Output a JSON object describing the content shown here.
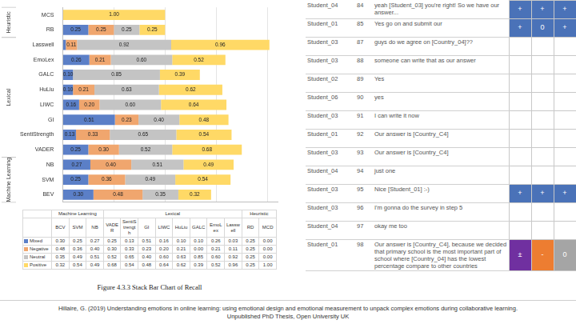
{
  "chart_data": {
    "type": "bar",
    "orientation": "horizontal",
    "stacked": true,
    "data_labels": true,
    "grid": true,
    "tick_labels": "y",
    "categories": [
      "MCS",
      "RB",
      "Lasswell",
      "EmoLex",
      "GALC",
      "HuLiu",
      "LIWC",
      "GI",
      "SentiStrength",
      "VADER",
      "NB",
      "SVM",
      "BEV"
    ],
    "groups": [
      {
        "label": "Heuristic",
        "categories": [
          "MCS",
          "RB"
        ]
      },
      {
        "label": "Lexical",
        "categories": [
          "Lasswell",
          "EmoLex",
          "GALC",
          "HuLiu",
          "LIWC",
          "GI",
          "SentiStrength",
          "VADER"
        ]
      },
      {
        "label": "Machine Learning",
        "categories": [
          "NB",
          "SVM",
          "BEV"
        ]
      }
    ],
    "xlim": [
      0,
      2.1
    ],
    "xticks": [
      0,
      0.5,
      1,
      1.5,
      2
    ],
    "series": [
      {
        "name": "Mixed",
        "color": "#5b7fc7",
        "values": [
          0,
          0.25,
          0.03,
          0.26,
          0.1,
          0.1,
          0.16,
          0.51,
          0.13,
          0.25,
          0.27,
          0.25,
          0.3
        ],
        "value_labels": [
          null,
          "0.25",
          null,
          "0.26",
          "0.10",
          "0.10",
          "0.16",
          "0.51",
          "0.13",
          "0.25",
          "0.27",
          "0.25",
          "0.30"
        ]
      },
      {
        "name": "Negative",
        "color": "#f0a66e",
        "values": [
          0,
          0.25,
          0.11,
          0.21,
          0,
          0.21,
          0.2,
          0.23,
          0.33,
          0.3,
          0.4,
          0.36,
          0.48
        ],
        "value_labels": [
          null,
          "0.25",
          "0.11",
          "0.21",
          null,
          "0.21",
          "0.20",
          "0.23",
          "0.33",
          "0.30",
          "0.40",
          "0.36",
          "0.48"
        ]
      },
      {
        "name": "Neutral",
        "color": "#c4c4c4",
        "values": [
          0,
          0.25,
          0.92,
          0.6,
          0.85,
          0.63,
          0.6,
          0.4,
          0.65,
          0.52,
          0.51,
          0.49,
          0.35
        ],
        "value_labels": [
          null,
          "0.25",
          "0.92",
          "0.60",
          "0.85",
          "0.63",
          "0.60",
          "0.40",
          "0.65",
          "0.52",
          "0.51",
          "0.49",
          "0.35"
        ]
      },
      {
        "name": "Positive",
        "color": "#ffd966",
        "values": [
          1.0,
          0.25,
          0.96,
          0.52,
          0.39,
          0.62,
          0.64,
          0.48,
          0.54,
          0.68,
          0.49,
          0.54,
          0.32
        ],
        "value_labels": [
          "1.00",
          "0.25",
          "0.96",
          "0.52",
          "0.39",
          "0.62",
          "0.64",
          "0.48",
          "0.54",
          "0.68",
          "0.49",
          "0.54",
          "0.32"
        ]
      }
    ]
  },
  "table": {
    "header_groups": [
      {
        "label": "Machine Learning",
        "columns": [
          "BCV",
          "SVM",
          "NB"
        ]
      },
      {
        "label": "Lexical",
        "columns": [
          "VADER",
          "SentiStrength",
          "GI",
          "LIWC",
          "HuLiu",
          "GALC",
          "EmoLex",
          "Lasswell"
        ]
      },
      {
        "label": "Heuristic",
        "columns": [
          "RD",
          "MCD"
        ]
      }
    ],
    "rows": [
      {
        "name": "Mixed",
        "color": "#5b7fc7",
        "cells": [
          "0.30",
          "0.25",
          "0.27",
          "0.25",
          "0.13",
          "0.51",
          "0.16",
          "0.10",
          "0.10",
          "0.26",
          "0.03",
          "0.25",
          "0.00"
        ]
      },
      {
        "name": "Negative",
        "color": "#f0a66e",
        "cells": [
          "0.48",
          "0.36",
          "0.40",
          "0.30",
          "0.33",
          "0.23",
          "0.20",
          "0.21",
          "0.00",
          "0.21",
          "0.11",
          "0.25",
          "0.00"
        ]
      },
      {
        "name": "Neutral",
        "color": "#c4c4c4",
        "cells": [
          "0.35",
          "0.49",
          "0.51",
          "0.52",
          "0.65",
          "0.40",
          "0.60",
          "0.63",
          "0.85",
          "0.60",
          "0.92",
          "0.25",
          "0.00"
        ]
      },
      {
        "name": "Positive",
        "color": "#ffd966",
        "cells": [
          "0.32",
          "0.54",
          "0.49",
          "0.68",
          "0.54",
          "0.48",
          "0.64",
          "0.62",
          "0.39",
          "0.52",
          "0.96",
          "0.25",
          "1.00"
        ]
      }
    ]
  },
  "caption": "Figure 4.3.3 Stack Bar Chart of Recall",
  "transcript": {
    "rows": [
      {
        "speaker": "Student_04",
        "line": 84,
        "text": "yeah [Student_03] you're right! So we have our answer...",
        "cells": [
          {
            "symbol": "+",
            "color": "#4a72b8"
          },
          {
            "symbol": "+",
            "color": "#4a72b8"
          },
          {
            "symbol": "+",
            "color": "#4a72b8"
          }
        ]
      },
      {
        "speaker": "Student_01",
        "line": 85,
        "text": "Yes go on and submit our",
        "cells": [
          {
            "symbol": "+",
            "color": "#4a72b8"
          },
          {
            "symbol": "0",
            "color": "#4a72b8"
          },
          {
            "symbol": "+",
            "color": "#4a72b8"
          }
        ]
      },
      {
        "speaker": "Student_03",
        "line": 87,
        "text": "guys do we agree on [Country_04]??",
        "cells": []
      },
      {
        "speaker": "Student_03",
        "line": 88,
        "text": "someone can write that as our answer",
        "cells": []
      },
      {
        "speaker": "Student_02",
        "line": 89,
        "text": "Yes",
        "cells": []
      },
      {
        "speaker": "Student_06",
        "line": 90,
        "text": "yes",
        "cells": []
      },
      {
        "speaker": "Student_03",
        "line": 91,
        "text": "I can write it now",
        "cells": []
      },
      {
        "speaker": "Student_01",
        "line": 92,
        "text": "Our answer is [Country_C4]",
        "cells": []
      },
      {
        "speaker": "Student_03",
        "line": 93,
        "text": "Our answer is [Country_C4]",
        "cells": []
      },
      {
        "speaker": "Student_04",
        "line": 94,
        "text": "just one",
        "cells": []
      },
      {
        "speaker": "Student_03",
        "line": 95,
        "text": "Nice [Student_01] :-)",
        "cells": [
          {
            "symbol": "+",
            "color": "#4a72b8"
          },
          {
            "symbol": "+",
            "color": "#4a72b8"
          },
          {
            "symbol": "+",
            "color": "#4a72b8"
          }
        ]
      },
      {
        "speaker": "Student_03",
        "line": 96,
        "text": "I'm gonna do the survey in step 5",
        "cells": []
      },
      {
        "speaker": "Student_04",
        "line": 97,
        "text": "okay me too",
        "cells": []
      },
      {
        "speaker": "Student_01",
        "line": 98,
        "text": "Our answer is [Country_C4], because we decided that primary school is the most important part of school where [Country_04] has the lowest percentage compare to other countries",
        "cells": [
          {
            "symbol": "±",
            "color": "#7030a0"
          },
          {
            "symbol": "-",
            "color": "#ed7d31"
          },
          {
            "symbol": "0",
            "color": "#a5a5a5"
          }
        ]
      }
    ]
  },
  "citation": {
    "lines": [
      "Hillaire, G. (2019) Understanding emotions in online learning: using emotional design and emotional measurement to unpack complex emotions during collaborative learning.",
      "Unpublished PhD Thesis, Open University UK"
    ]
  }
}
